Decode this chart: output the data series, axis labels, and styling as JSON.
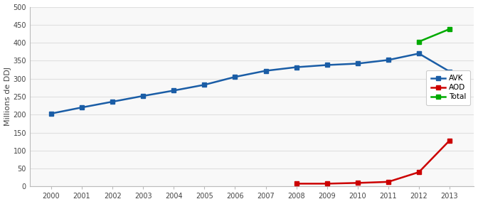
{
  "years": [
    2000,
    2001,
    2002,
    2003,
    2004,
    2005,
    2006,
    2007,
    2008,
    2009,
    2010,
    2011,
    2012,
    2013
  ],
  "avk": [
    203,
    220,
    236,
    252,
    267,
    283,
    305,
    322,
    332,
    338,
    342,
    352,
    370,
    320
  ],
  "aod": [
    null,
    null,
    null,
    null,
    null,
    null,
    null,
    null,
    8,
    8,
    10,
    13,
    40,
    128
  ],
  "total": [
    null,
    null,
    null,
    null,
    null,
    null,
    null,
    null,
    null,
    null,
    null,
    null,
    403,
    438
  ],
  "avk_color": "#1a5da6",
  "aod_color": "#cc0000",
  "total_color": "#00aa00",
  "ylabel": "Millions de DDJ",
  "ylim": [
    0,
    500
  ],
  "yticks": [
    0,
    50,
    100,
    150,
    200,
    250,
    300,
    350,
    400,
    450,
    500
  ],
  "legend_labels": [
    "AVK",
    "AOD",
    "Total"
  ],
  "marker": "s",
  "markersize": 4,
  "linewidth": 1.8,
  "plot_bg": "#f8f8f8",
  "grid_color": "#e0e0e0",
  "spine_color": "#bbbbbb",
  "tick_fontsize": 7,
  "ylabel_fontsize": 8
}
